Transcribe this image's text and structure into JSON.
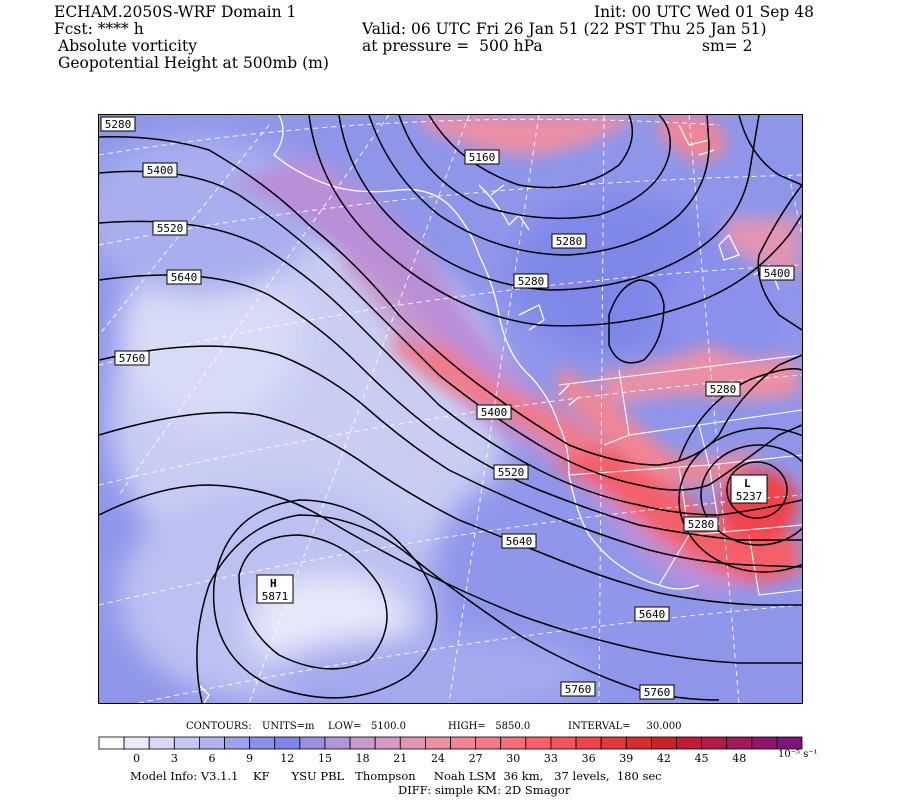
{
  "header": {
    "model_title": "ECHAM.2050S-WRF Domain 1",
    "fcst": "Fcst: **** h",
    "field1": "Absolute vorticity",
    "field2": "Geopotential Height at 500mb (m)",
    "init": "Init: 00 UTC Wed 01 Sep 48",
    "valid": "Valid: 06 UTC Fri 26 Jan 51 (22 PST Thu 25 Jan 51)",
    "pressure": "at pressure =  500 hPa",
    "smooth": "sm= 2"
  },
  "contour_labels": [
    {
      "text": "5280"
    },
    {
      "text": "5400"
    },
    {
      "text": "5520"
    },
    {
      "text": "5640"
    },
    {
      "text": "5760"
    },
    {
      "text": "5160"
    },
    {
      "text": "5280"
    },
    {
      "text": "5280"
    },
    {
      "text": "5400"
    },
    {
      "text": "5280"
    },
    {
      "text": "5400"
    },
    {
      "text": "5520"
    },
    {
      "text": "5640"
    },
    {
      "text": "5280"
    },
    {
      "text": "5640"
    },
    {
      "text": "5760"
    },
    {
      "text": "5760"
    }
  ],
  "extrema": [
    {
      "letter": "H",
      "value": "5871"
    },
    {
      "letter": "L",
      "value": "5237"
    }
  ],
  "contour_info": {
    "label": "CONTOURS:",
    "units": "UNITS=m",
    "low": "LOW=   5100.0",
    "high": "HIGH=   5850.0",
    "interval": "INTERVAL=     30.000"
  },
  "colorbar": {
    "ticks": [
      "0",
      "3",
      "6",
      "9",
      "12",
      "15",
      "18",
      "21",
      "24",
      "27",
      "30",
      "33",
      "36",
      "39",
      "42",
      "45",
      "48"
    ],
    "units": "10⁻⁵ s⁻¹",
    "colors": [
      "#ffffff",
      "#ebebf8",
      "#d8d8f5",
      "#c4c6f3",
      "#b1b4f1",
      "#9ea2ee",
      "#8a90ec",
      "#7f86e9",
      "#9c8fe0",
      "#b095d7",
      "#c69ace",
      "#d89ac0",
      "#e394b2",
      "#ec8fa4",
      "#f28595",
      "#f57a87",
      "#f86e78",
      "#fa6169",
      "#f8525a",
      "#f2434b",
      "#e8363d",
      "#dc2b30",
      "#cf2027",
      "#c31a36",
      "#b31a48",
      "#a2185a",
      "#8f166b",
      "#7d157a"
    ]
  },
  "model_info": {
    "line1": "Model Info: V3.1.1    KF      YSU PBL   Thompson     Noah LSM  36 km,   37 levels,  180 sec",
    "line2": "DIFF: simple KM: 2D Smagor"
  }
}
